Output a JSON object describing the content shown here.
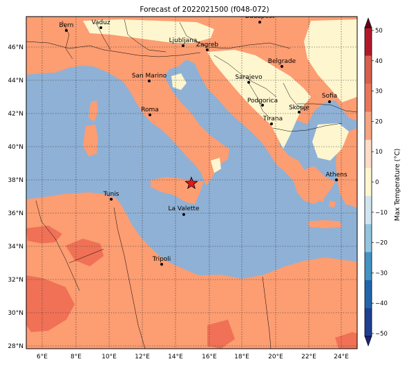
{
  "title": "Forecast of 2022021500 (f048-072)",
  "colorbar": {
    "label": "Max Temperature (°C)",
    "ticks": [
      "50",
      "40",
      "30",
      "20",
      "10",
      "0",
      "−10",
      "−20",
      "−30",
      "−40",
      "−50"
    ],
    "bands": [
      "#67001f",
      "#b2182b",
      "#d6604d",
      "#f4a582",
      "#fddbc7",
      "#fef6cf",
      "#f7f7f7",
      "#d1e5f0",
      "#92c5de",
      "#4393c3",
      "#2166ac",
      "#1f3f93",
      "#1a237e"
    ]
  },
  "colors": {
    "sea": "#8fb1d6",
    "land_warm": "#fc9d72",
    "land_hot": "#f07156",
    "land_mild": "#fef6cf",
    "border": "#000000"
  },
  "axes": {
    "lon_labels": [
      "6°E",
      "8°E",
      "10°E",
      "12°E",
      "14°E",
      "16°E",
      "18°E",
      "20°E",
      "22°E",
      "24°E"
    ],
    "lat_labels": [
      "46°N",
      "44°N",
      "42°N",
      "40°N",
      "38°N",
      "36°N",
      "34°N",
      "32°N",
      "30°N",
      "28°N"
    ]
  },
  "cities": [
    {
      "name": "Bern"
    },
    {
      "name": "Vaduz"
    },
    {
      "name": "Budapest"
    },
    {
      "name": "Ljubljana"
    },
    {
      "name": "Zagreb"
    },
    {
      "name": "Belgrade"
    },
    {
      "name": "San Marino"
    },
    {
      "name": "Sarajevo"
    },
    {
      "name": "Sofia"
    },
    {
      "name": "Podgorica"
    },
    {
      "name": "Skopje"
    },
    {
      "name": "Roma"
    },
    {
      "name": "Tirana"
    },
    {
      "name": "Athens"
    },
    {
      "name": "Tunis"
    },
    {
      "name": "La Valette"
    },
    {
      "name": "Tripoli"
    }
  ],
  "marker": {
    "name": "forecast-location",
    "symbol": "star",
    "color": "#e41a1c"
  }
}
